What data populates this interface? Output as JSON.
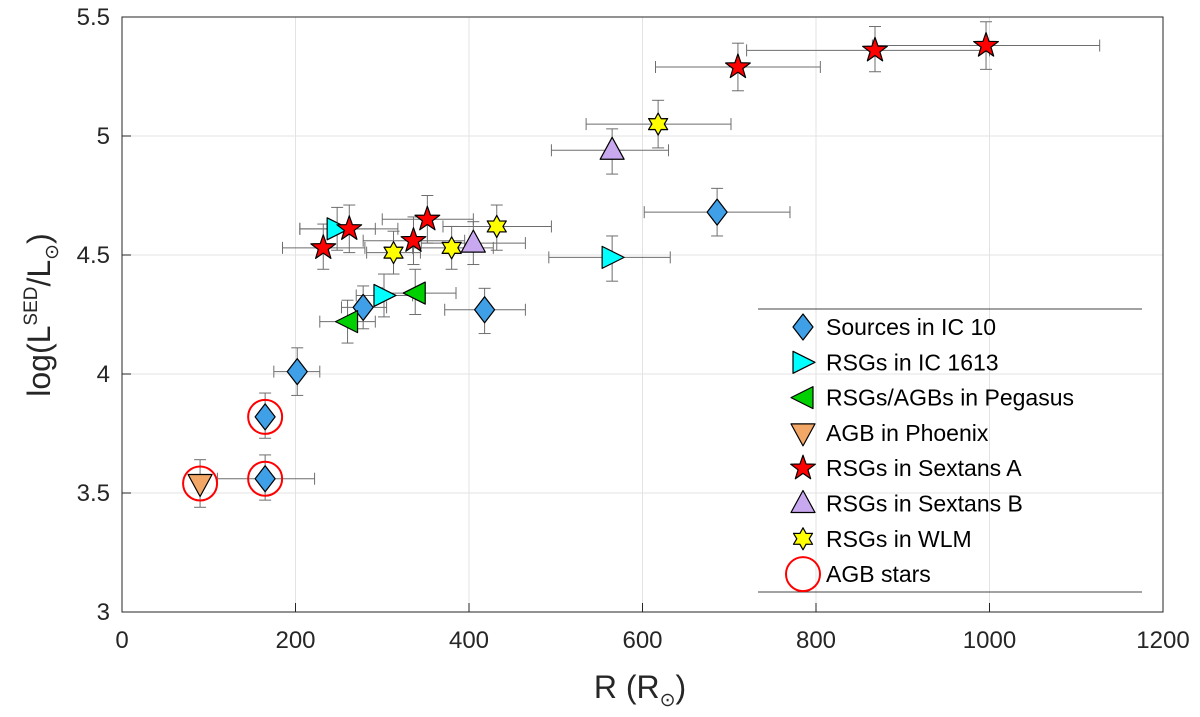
{
  "chart_data": {
    "type": "scatter",
    "xlabel": "R (R",
    "xlabel_sub": "⊙",
    "xlabel_close": ")",
    "ylabel_pre": "log(L",
    "ylabel_sup": "SED",
    "ylabel_mid": "/L",
    "ylabel_sub": "⊙",
    "ylabel_close": ")",
    "xlim": [
      0,
      1200
    ],
    "ylim": [
      3,
      5.5
    ],
    "grid": true,
    "legend_position": "bottom-right",
    "x_ticks": [
      {
        "value": 0,
        "label": "0"
      },
      {
        "value": 200,
        "label": "200"
      },
      {
        "value": 400,
        "label": "400"
      },
      {
        "value": 600,
        "label": "600"
      },
      {
        "value": 800,
        "label": "800"
      },
      {
        "value": 1000,
        "label": "1000"
      },
      {
        "value": 1200,
        "label": "1200"
      }
    ],
    "y_ticks": [
      {
        "value": 3,
        "label": "3"
      },
      {
        "value": 3.5,
        "label": "3.5"
      },
      {
        "value": 4,
        "label": "4"
      },
      {
        "value": 4.5,
        "label": "4.5"
      },
      {
        "value": 5,
        "label": "5"
      },
      {
        "value": 5.5,
        "label": "5.5"
      }
    ],
    "series": [
      {
        "name": "Sources in IC 10",
        "marker": "diamond",
        "color": "#3FA0E8",
        "points": [
          {
            "x": 165,
            "y": 3.82,
            "xerr": [
              165,
              165
            ],
            "yerr": [
              3.73,
              3.92
            ]
          },
          {
            "x": 165,
            "y": 3.56,
            "xerr": [
              110,
              222
            ],
            "yerr": [
              3.47,
              3.66
            ]
          },
          {
            "x": 202,
            "y": 4.01,
            "xerr": [
              175,
              228
            ],
            "yerr": [
              3.91,
              4.11
            ]
          },
          {
            "x": 278,
            "y": 4.28,
            "xerr": [
              253,
              305
            ],
            "yerr": [
              4.19,
              4.37
            ]
          },
          {
            "x": 418,
            "y": 4.27,
            "xerr": [
              372,
              465
            ],
            "yerr": [
              4.17,
              4.36
            ]
          },
          {
            "x": 686,
            "y": 4.68,
            "xerr": [
              602,
              770
            ],
            "yerr": [
              4.58,
              4.78
            ]
          }
        ]
      },
      {
        "name": "RSGs in IC 1613",
        "marker": "triangle-right",
        "color": "#00FFFF",
        "points": [
          {
            "x": 248,
            "y": 4.61,
            "xerr": [
              205,
              292
            ],
            "yerr": [
              4.52,
              4.7
            ]
          },
          {
            "x": 302,
            "y": 4.33,
            "xerr": [
              270,
              335
            ],
            "yerr": [
              4.24,
              4.42
            ]
          },
          {
            "x": 565,
            "y": 4.49,
            "xerr": [
              492,
              632
            ],
            "yerr": [
              4.39,
              4.58
            ]
          }
        ]
      },
      {
        "name": "RSGs/AGBs in Pegasus",
        "marker": "triangle-left",
        "color": "#00D000",
        "points": [
          {
            "x": 260,
            "y": 4.22,
            "xerr": [
              228,
              292
            ],
            "yerr": [
              4.13,
              4.31
            ]
          },
          {
            "x": 338,
            "y": 4.34,
            "xerr": [
              300,
              385
            ],
            "yerr": [
              4.25,
              4.44
            ]
          }
        ]
      },
      {
        "name": "AGB in Phoenix",
        "marker": "triangle-down",
        "color": "#F2A766",
        "points": [
          {
            "x": 90,
            "y": 3.54,
            "xerr": [
              90,
              90
            ],
            "yerr": [
              3.44,
              3.64
            ]
          }
        ]
      },
      {
        "name": "RSGs in Sextans A",
        "marker": "star5",
        "color": "#FF0000",
        "points": [
          {
            "x": 232,
            "y": 4.53,
            "xerr": [
              185,
              280
            ],
            "yerr": [
              4.44,
              4.63
            ]
          },
          {
            "x": 262,
            "y": 4.61,
            "xerr": [
              205,
              318
            ],
            "yerr": [
              4.51,
              4.71
            ]
          },
          {
            "x": 336,
            "y": 4.56,
            "xerr": [
              278,
              395
            ],
            "yerr": [
              4.46,
              4.66
            ]
          },
          {
            "x": 352,
            "y": 4.65,
            "xerr": [
              300,
              405
            ],
            "yerr": [
              4.55,
              4.75
            ]
          },
          {
            "x": 710,
            "y": 5.29,
            "xerr": [
              615,
              805
            ],
            "yerr": [
              5.19,
              5.39
            ]
          },
          {
            "x": 868,
            "y": 5.36,
            "xerr": [
              720,
              1000
            ],
            "yerr": [
              5.27,
              5.46
            ]
          },
          {
            "x": 996,
            "y": 5.38,
            "xerr": [
              865,
              1127
            ],
            "yerr": [
              5.28,
              5.48
            ]
          }
        ]
      },
      {
        "name": "RSGs in Sextans B",
        "marker": "triangle-up",
        "color": "#C8A8EE",
        "points": [
          {
            "x": 565,
            "y": 4.94,
            "xerr": [
              495,
              630
            ],
            "yerr": [
              4.84,
              5.03
            ]
          },
          {
            "x": 405,
            "y": 4.55,
            "xerr": [
              345,
              465
            ],
            "yerr": [
              4.46,
              4.64
            ]
          }
        ]
      },
      {
        "name": "RSGs in WLM",
        "marker": "hexagram",
        "color": "#FFFF00",
        "points": [
          {
            "x": 313,
            "y": 4.51,
            "xerr": [
              282,
              344
            ],
            "yerr": [
              4.42,
              4.6
            ]
          },
          {
            "x": 380,
            "y": 4.53,
            "xerr": [
              335,
              428
            ],
            "yerr": [
              4.44,
              4.62
            ]
          },
          {
            "x": 432,
            "y": 4.62,
            "xerr": [
              370,
              495
            ],
            "yerr": [
              4.52,
              4.71
            ]
          },
          {
            "x": 618,
            "y": 5.05,
            "xerr": [
              535,
              702
            ],
            "yerr": [
              4.95,
              5.15
            ]
          }
        ]
      },
      {
        "name": "AGB stars",
        "marker": "circle-open",
        "color": "#FF0000",
        "points": [
          {
            "x": 165,
            "y": 3.82
          },
          {
            "x": 165,
            "y": 3.56
          },
          {
            "x": 90,
            "y": 3.54
          }
        ]
      }
    ]
  }
}
